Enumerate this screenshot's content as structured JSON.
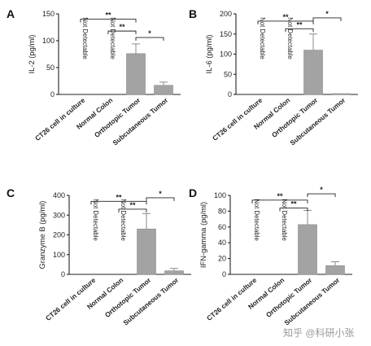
{
  "categories": [
    "CT26 cell in culture",
    "Normal Colon",
    "Orthotopic Tumor",
    "Subcutaneous Tumor"
  ],
  "watermark": "知乎 @科研小张",
  "colors": {
    "bar": "#a3a3a3",
    "axis": "#222222"
  },
  "chart_data": [
    {
      "type": "bar",
      "panel_label": "A",
      "ylabel": "IL-2 (pg/ml)",
      "ylim": [
        0,
        150
      ],
      "yticks": [
        0,
        50,
        100,
        150
      ],
      "categories": [
        "CT26 cell in culture",
        "Normal Colon",
        "Orthotopic Tumor",
        "Subcutaneous Tumor"
      ],
      "values": [
        null,
        null,
        76,
        17
      ],
      "errors": [
        null,
        null,
        18,
        6
      ],
      "annotations": [
        "Not Detectable",
        "Not Detectable",
        "",
        ""
      ],
      "significance": [
        {
          "from": 0,
          "to": 2,
          "label": "**",
          "y": 140
        },
        {
          "from": 1,
          "to": 2,
          "label": "**",
          "y": 118
        },
        {
          "from": 2,
          "to": 3,
          "label": "*",
          "y": 106
        }
      ]
    },
    {
      "type": "bar",
      "panel_label": "B",
      "ylabel": "IL-6 (pg/ml)",
      "ylim": [
        0,
        200
      ],
      "yticks": [
        0,
        50,
        100,
        150,
        200
      ],
      "categories": [
        "CT26 cell in culture",
        "Normal Colon",
        "Orthotopic Tumor",
        "Subcutaneous Tumor"
      ],
      "values": [
        null,
        null,
        110,
        2
      ],
      "errors": [
        null,
        null,
        40,
        0
      ],
      "annotations": [
        "Not Detectable",
        "Not Detectable",
        "",
        ""
      ],
      "significance": [
        {
          "from": 0,
          "to": 2,
          "label": "**",
          "y": 182
        },
        {
          "from": 1,
          "to": 2,
          "label": "**",
          "y": 163
        },
        {
          "from": 2,
          "to": 3,
          "label": "*",
          "y": 190
        }
      ]
    },
    {
      "type": "bar",
      "panel_label": "C",
      "ylabel": "Granzyme B (pg/ml)",
      "ylim": [
        0,
        400
      ],
      "yticks": [
        0,
        100,
        200,
        300,
        400
      ],
      "categories": [
        "CT26 cell in culture",
        "Normal Colon",
        "Orthotopic Tumor",
        "Subcutaneous Tumor"
      ],
      "values": [
        null,
        null,
        230,
        18
      ],
      "errors": [
        null,
        null,
        78,
        12
      ],
      "annotations": [
        "Not Detectable",
        "Not Detectable",
        "",
        ""
      ],
      "significance": [
        {
          "from": 0,
          "to": 2,
          "label": "**",
          "y": 370
        },
        {
          "from": 1,
          "to": 2,
          "label": "**",
          "y": 330
        },
        {
          "from": 2,
          "to": 3,
          "label": "*",
          "y": 388
        }
      ]
    },
    {
      "type": "bar",
      "panel_label": "D",
      "ylabel": "IFN-gamma (pg/ml)",
      "ylim": [
        0,
        100
      ],
      "yticks": [
        0,
        20,
        40,
        60,
        80,
        100
      ],
      "categories": [
        "CT26 cell in culture",
        "Normal Colon",
        "Orthotopic Tumor",
        "Subcutaneous Tumor"
      ],
      "values": [
        null,
        null,
        63,
        11
      ],
      "errors": [
        null,
        null,
        18,
        5
      ],
      "annotations": [
        "Not Detectable",
        "Not Detectable",
        "",
        ""
      ],
      "significance": [
        {
          "from": 0,
          "to": 2,
          "label": "**",
          "y": 94
        },
        {
          "from": 1,
          "to": 2,
          "label": "**",
          "y": 84
        },
        {
          "from": 2,
          "to": 3,
          "label": "*",
          "y": 102
        }
      ]
    }
  ]
}
